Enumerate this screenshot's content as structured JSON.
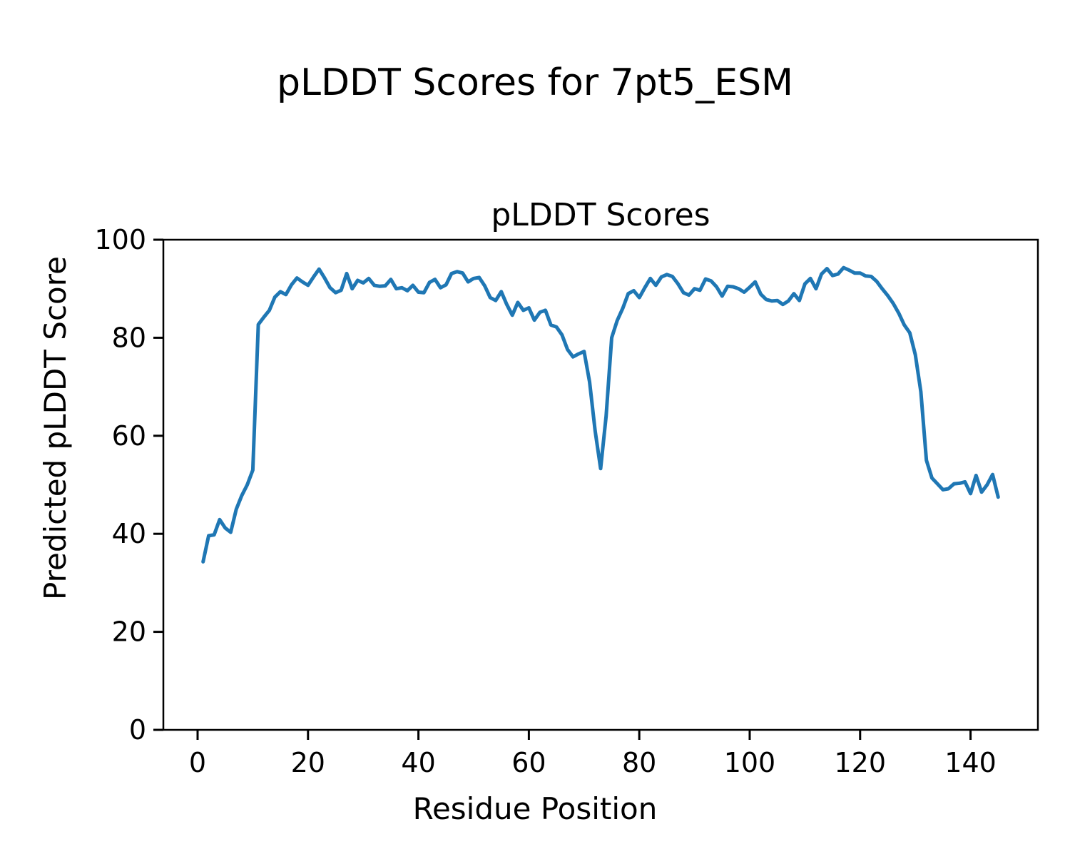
{
  "chart_data": {
    "type": "line",
    "suptitle": "pLDDT Scores for 7pt5_ESM",
    "title": "pLDDT Scores",
    "xlabel": "Residue Position",
    "ylabel": "Predicted pLDDT Score",
    "xlim": [
      -6.2,
      152.2
    ],
    "ylim": [
      0,
      100
    ],
    "xticks": [
      0,
      20,
      40,
      60,
      80,
      100,
      120,
      140
    ],
    "yticks": [
      0,
      20,
      40,
      60,
      80,
      100
    ],
    "grid": false,
    "legend": null,
    "line_color": "#1f77b4",
    "spine_color": "#000000",
    "text_color": "#000000",
    "series": [
      {
        "name": "pLDDT",
        "x": [
          1,
          2,
          3,
          4,
          5,
          6,
          7,
          8,
          9,
          10,
          11,
          12,
          13,
          14,
          15,
          16,
          17,
          18,
          19,
          20,
          21,
          22,
          23,
          24,
          25,
          26,
          27,
          28,
          29,
          30,
          31,
          32,
          33,
          34,
          35,
          36,
          37,
          38,
          39,
          40,
          41,
          42,
          43,
          44,
          45,
          46,
          47,
          48,
          49,
          50,
          51,
          52,
          53,
          54,
          55,
          56,
          57,
          58,
          59,
          60,
          61,
          62,
          63,
          64,
          65,
          66,
          67,
          68,
          69,
          70,
          71,
          72,
          73,
          74,
          75,
          76,
          77,
          78,
          79,
          80,
          81,
          82,
          83,
          84,
          85,
          86,
          87,
          88,
          89,
          90,
          91,
          92,
          93,
          94,
          95,
          96,
          97,
          98,
          99,
          100,
          101,
          102,
          103,
          104,
          105,
          106,
          107,
          108,
          109,
          110,
          111,
          112,
          113,
          114,
          115,
          116,
          117,
          118,
          119,
          120,
          121,
          122,
          123,
          124,
          125,
          126,
          127,
          128,
          129,
          130,
          131,
          132,
          133,
          134,
          135,
          136,
          137,
          138,
          139,
          140,
          141,
          142,
          143,
          144,
          145
        ],
        "values": [
          34.3,
          39.6,
          39.8,
          42.9,
          41.2,
          40.3,
          45.0,
          47.8,
          50.0,
          53.0,
          82.7,
          84.2,
          85.6,
          88.3,
          89.4,
          88.8,
          90.8,
          92.2,
          91.4,
          90.7,
          92.4,
          94.0,
          92.2,
          90.2,
          89.2,
          89.7,
          93.1,
          90.0,
          91.7,
          91.2,
          92.1,
          90.7,
          90.5,
          90.6,
          91.9,
          90.0,
          90.2,
          89.6,
          90.7,
          89.3,
          89.2,
          91.3,
          91.9,
          90.2,
          90.8,
          93.1,
          93.5,
          93.2,
          91.4,
          92.1,
          92.3,
          90.6,
          88.2,
          87.6,
          89.4,
          86.8,
          84.6,
          87.2,
          85.6,
          86.1,
          83.6,
          85.2,
          85.6,
          82.6,
          82.2,
          80.6,
          77.6,
          76.1,
          76.7,
          77.2,
          71.0,
          61.0,
          53.3,
          64.0,
          80.0,
          83.5,
          86.0,
          89.0,
          89.6,
          88.2,
          90.2,
          92.1,
          90.7,
          92.4,
          92.9,
          92.5,
          91.0,
          89.2,
          88.7,
          90.0,
          89.7,
          92.0,
          91.6,
          90.4,
          88.5,
          90.5,
          90.4,
          90.0,
          89.3,
          90.3,
          91.4,
          88.9,
          87.8,
          87.5,
          87.6,
          86.8,
          87.5,
          89.0,
          87.6,
          91.0,
          92.1,
          90.0,
          93.0,
          94.1,
          92.7,
          93.0,
          94.3,
          93.8,
          93.2,
          93.2,
          92.6,
          92.5,
          91.5,
          90.0,
          88.6,
          87.0,
          85.0,
          82.6,
          81.0,
          76.5,
          69.0,
          55.0,
          51.4,
          50.2,
          49.0,
          49.2,
          50.2,
          50.3,
          50.6,
          48.2,
          51.9,
          48.5,
          50.0,
          52.1,
          47.5
        ]
      }
    ]
  }
}
